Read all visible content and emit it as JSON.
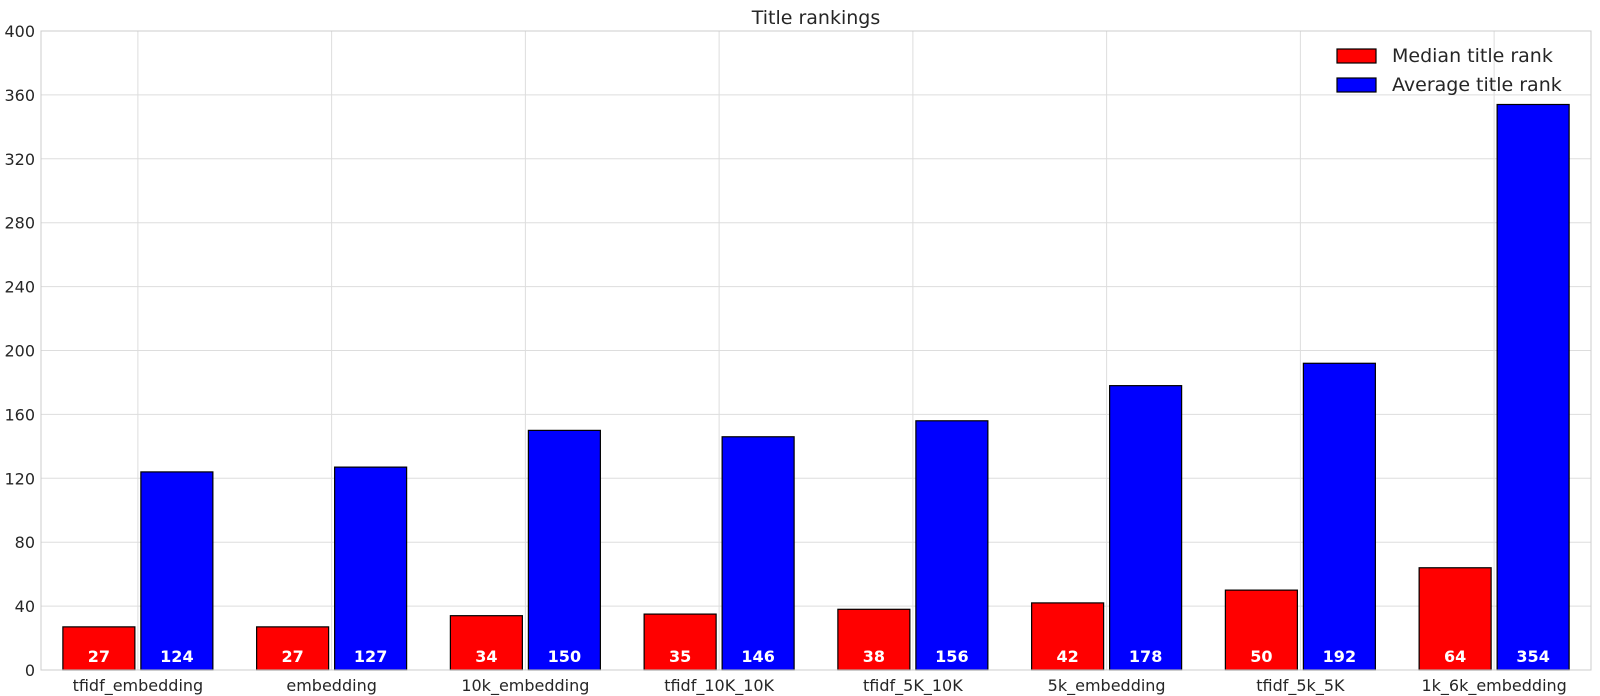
{
  "chart_data": {
    "type": "bar",
    "title": "Title rankings",
    "xlabel": "",
    "ylabel": "",
    "ylim": [
      0,
      400
    ],
    "yticks": [
      "0",
      "40",
      "80",
      "120",
      "160",
      "200",
      "240",
      "280",
      "320",
      "360",
      "400"
    ],
    "categories": [
      "tfidf_embedding",
      "embedding",
      "10k_embedding",
      "tfidf_10K_10K",
      "tfidf_5K_10K",
      "5k_embedding",
      "tfidf_5k_5K",
      "1k_6k_embedding"
    ],
    "series": [
      {
        "name": "Median title rank",
        "color": "#ff0000",
        "values": [
          27,
          27,
          34,
          35,
          38,
          42,
          50,
          64
        ]
      },
      {
        "name": "Average title rank",
        "color": "#0000ff",
        "values": [
          124,
          127,
          150,
          146,
          156,
          178,
          192,
          354
        ]
      }
    ],
    "data_labels": {
      "series_0": [
        "27",
        "27",
        "34",
        "35",
        "38",
        "42",
        "50",
        "64"
      ],
      "series_1": [
        "124",
        "127",
        "150",
        "146",
        "156",
        "178",
        "192",
        "354"
      ]
    },
    "grid": true,
    "legend_position": "top-right"
  }
}
